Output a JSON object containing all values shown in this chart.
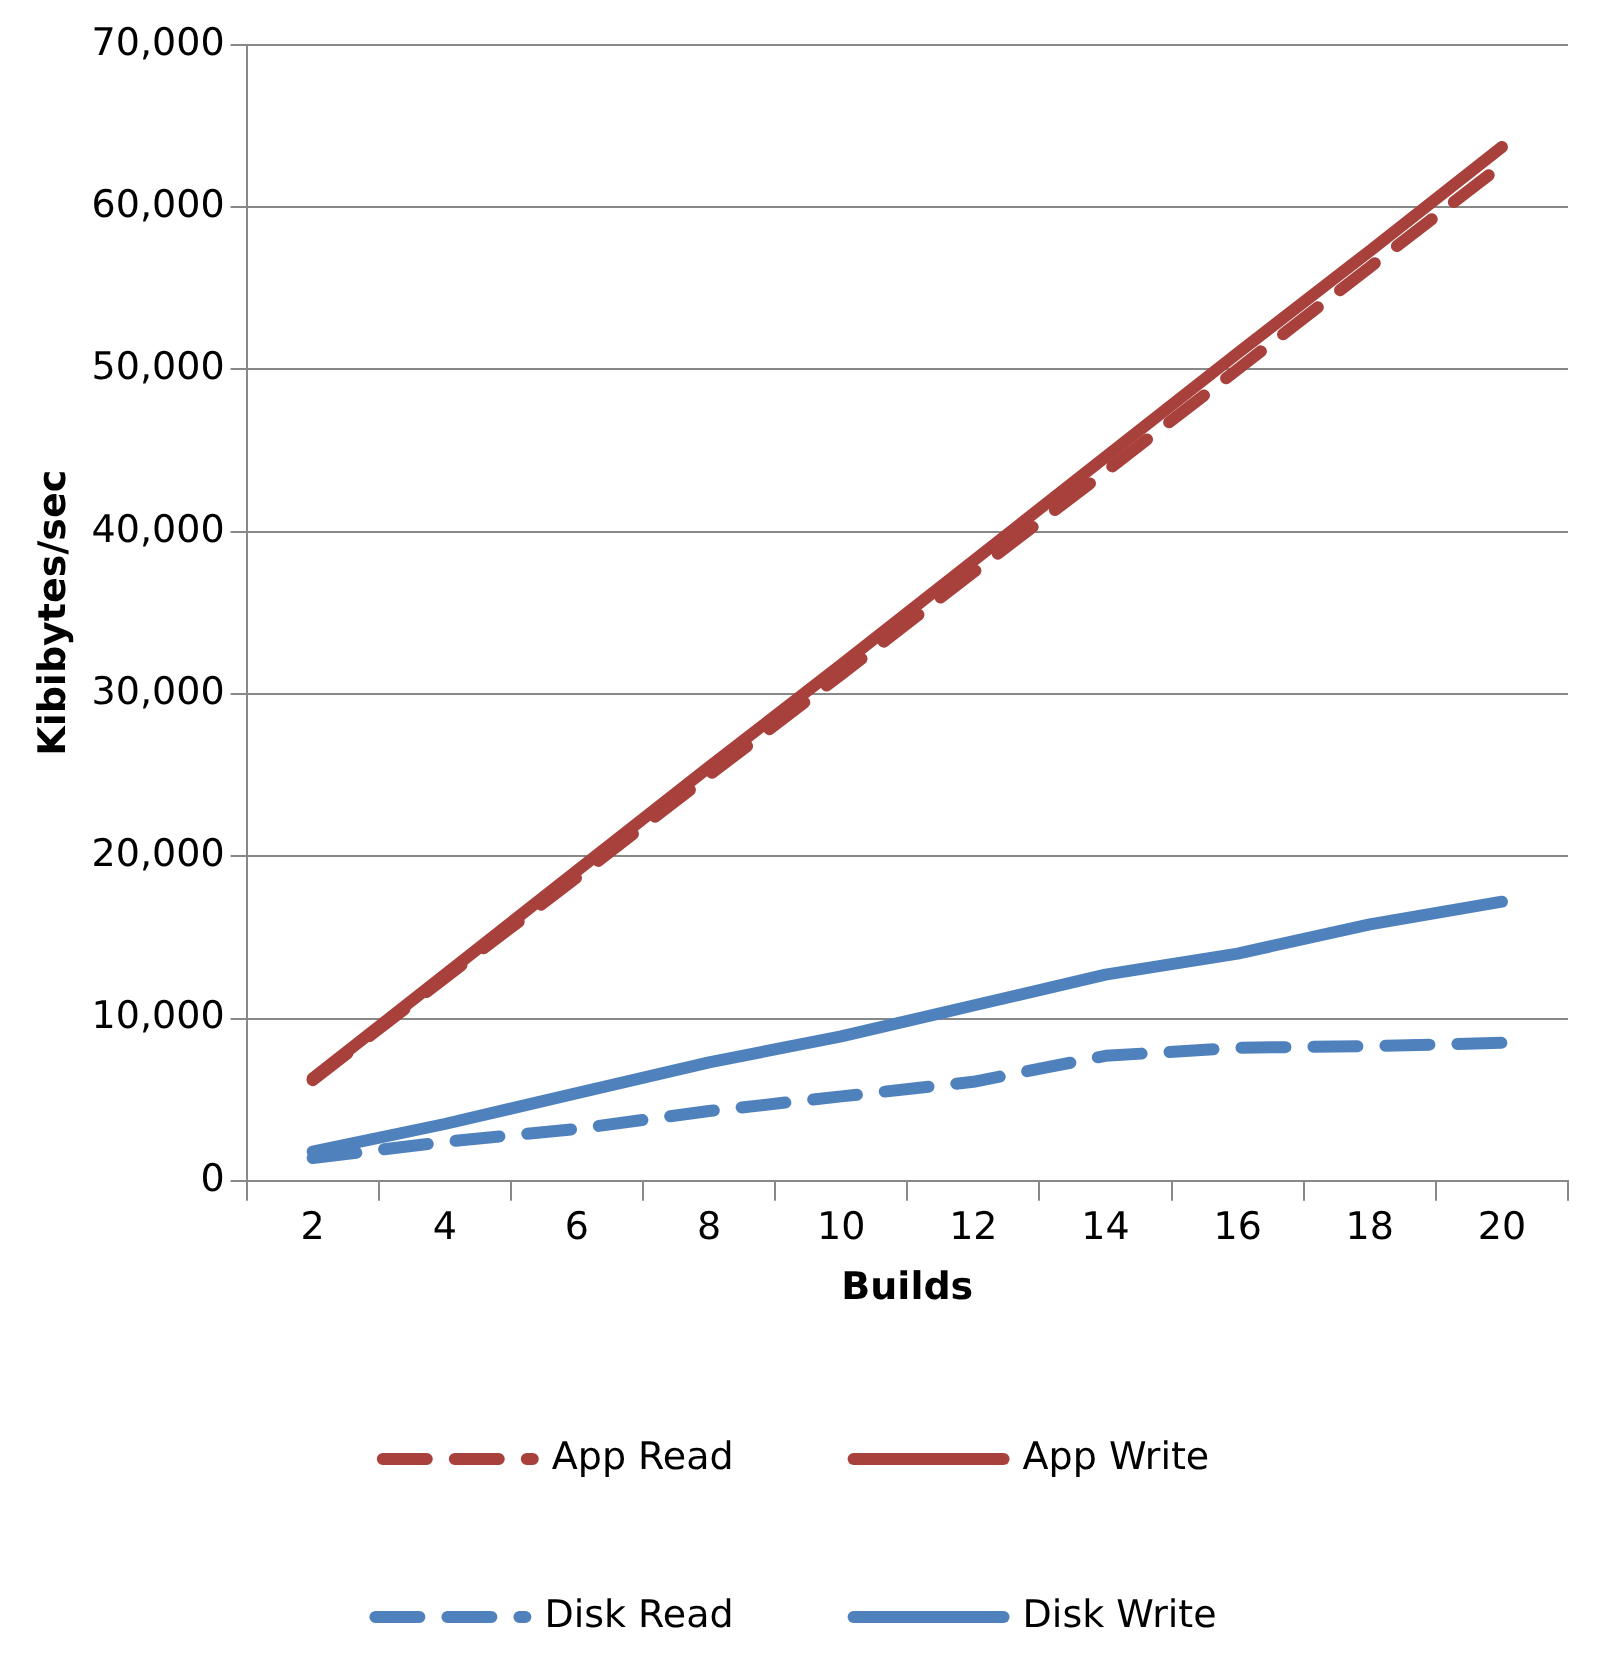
{
  "chart_data": {
    "type": "line",
    "xlabel": "Builds",
    "ylabel": "Kibibytes/sec",
    "categories": [
      "2",
      "4",
      "6",
      "8",
      "10",
      "12",
      "14",
      "16",
      "18",
      "20"
    ],
    "series": [
      {
        "name": "App Read",
        "color": "#a8403c",
        "line_style": "dashed",
        "values": [
          6200,
          12500,
          18700,
          25000,
          31200,
          37500,
          43700,
          50000,
          56300,
          62600
        ]
      },
      {
        "name": "App Write",
        "color": "#a8403c",
        "line_style": "solid",
        "values": [
          6300,
          12700,
          19100,
          25500,
          31800,
          38200,
          44600,
          51000,
          57300,
          63700
        ]
      },
      {
        "name": "Disk Read",
        "color": "#4f81bd",
        "line_style": "dashed",
        "values": [
          1400,
          2400,
          3200,
          4300,
          5200,
          6100,
          7700,
          8200,
          8300,
          8500
        ]
      },
      {
        "name": "Disk Write",
        "color": "#4f81bd",
        "line_style": "solid",
        "values": [
          1800,
          3500,
          5400,
          7300,
          8900,
          10800,
          12700,
          14000,
          15800,
          17200
        ]
      }
    ],
    "ylim": [
      0,
      70000
    ],
    "yticks": [
      0,
      {
        "value": 10000,
        "label": "10,000"
      },
      {
        "value": 20000,
        "label": "20,000"
      },
      {
        "value": 30000,
        "label": "30,000"
      },
      {
        "value": 40000,
        "label": "40,000"
      },
      {
        "value": 50000,
        "label": "50,000"
      },
      {
        "value": 60000,
        "label": "60,000"
      },
      {
        "value": 70000,
        "label": "70,000"
      }
    ],
    "grid": "y",
    "legend": "bottom",
    "marker": "none"
  }
}
